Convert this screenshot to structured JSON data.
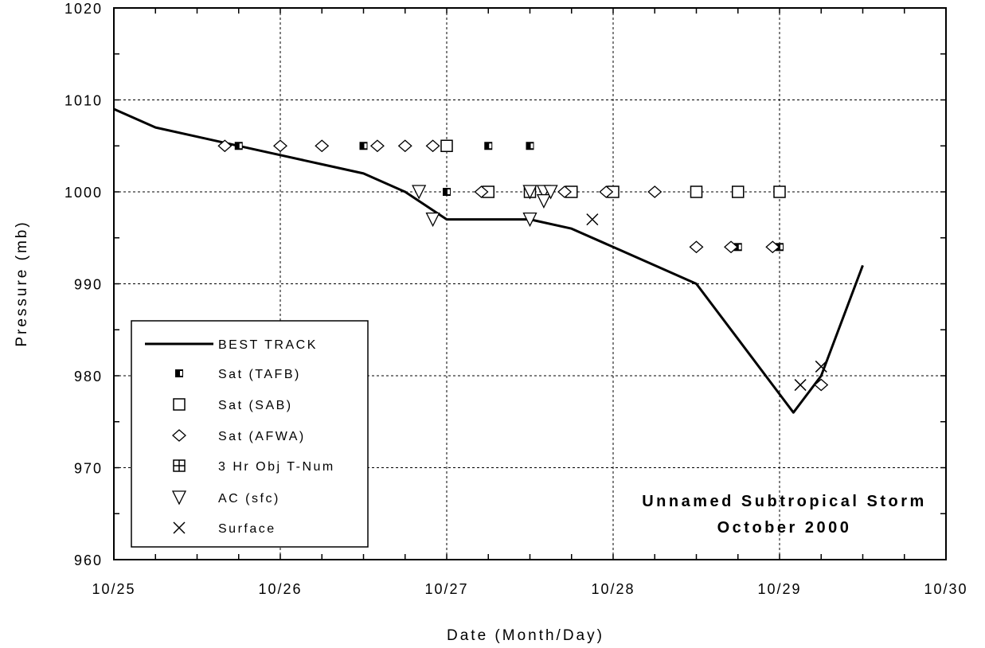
{
  "chart_data": {
    "type": "line",
    "xlabel": "Date (Month/Day)",
    "ylabel": "Pressure (mb)",
    "xlim": [
      "10/25",
      "10/30"
    ],
    "ylim": [
      960,
      1020
    ],
    "x_ticks": [
      "10/25",
      "10/26",
      "10/27",
      "10/28",
      "10/29",
      "10/30"
    ],
    "y_ticks": [
      960,
      970,
      980,
      990,
      1000,
      1010,
      1020
    ],
    "grid": true,
    "annotation": [
      "Unnamed Subtropical Storm",
      "October 2000"
    ],
    "legend_position": "bottom-left",
    "series": [
      {
        "name": "BEST TRACK",
        "marker": "line",
        "points": [
          {
            "x": "10/25 00Z",
            "y": 1009
          },
          {
            "x": "10/25 06Z",
            "y": 1007
          },
          {
            "x": "10/25 12Z",
            "y": 1006
          },
          {
            "x": "10/25 18Z",
            "y": 1005
          },
          {
            "x": "10/26 00Z",
            "y": 1004
          },
          {
            "x": "10/26 06Z",
            "y": 1003
          },
          {
            "x": "10/26 12Z",
            "y": 1002
          },
          {
            "x": "10/26 18Z",
            "y": 1000
          },
          {
            "x": "10/27 00Z",
            "y": 997
          },
          {
            "x": "10/27 06Z",
            "y": 997
          },
          {
            "x": "10/27 12Z",
            "y": 997
          },
          {
            "x": "10/27 18Z",
            "y": 996
          },
          {
            "x": "10/28 00Z",
            "y": 994
          },
          {
            "x": "10/28 06Z",
            "y": 992
          },
          {
            "x": "10/28 12Z",
            "y": 990
          },
          {
            "x": "10/28 18Z",
            "y": 984
          },
          {
            "x": "10/29 00Z",
            "y": 978
          },
          {
            "x": "10/29 02Z",
            "y": 976
          },
          {
            "x": "10/29 06Z",
            "y": 980
          },
          {
            "x": "10/29 12Z",
            "y": 992
          }
        ]
      },
      {
        "name": "Sat (TAFB)",
        "marker": "half-square",
        "points": [
          {
            "x": "10/25 18Z",
            "y": 1005
          },
          {
            "x": "10/26 12Z",
            "y": 1005
          },
          {
            "x": "10/27 00Z",
            "y": 1005
          },
          {
            "x": "10/27 00Z",
            "y": 1000
          },
          {
            "x": "10/27 06Z",
            "y": 1005
          },
          {
            "x": "10/27 12Z",
            "y": 1005
          },
          {
            "x": "10/27 18Z",
            "y": 1000
          },
          {
            "x": "10/28 00Z",
            "y": 1000
          },
          {
            "x": "10/28 12Z",
            "y": 1000
          },
          {
            "x": "10/28 18Z",
            "y": 994
          },
          {
            "x": "10/29 00Z",
            "y": 994
          }
        ]
      },
      {
        "name": "Sat (SAB)",
        "marker": "square",
        "points": [
          {
            "x": "10/27 00Z",
            "y": 1005
          },
          {
            "x": "10/27 06Z",
            "y": 1000
          },
          {
            "x": "10/27 12Z",
            "y": 1000
          },
          {
            "x": "10/27 18Z",
            "y": 1000
          },
          {
            "x": "10/28 00Z",
            "y": 1000
          },
          {
            "x": "10/28 12Z",
            "y": 1000
          },
          {
            "x": "10/28 18Z",
            "y": 1000
          },
          {
            "x": "10/29 00Z",
            "y": 1000
          }
        ]
      },
      {
        "name": "Sat (AFWA)",
        "marker": "diamond",
        "points": [
          {
            "x": "10/25 16Z",
            "y": 1005
          },
          {
            "x": "10/26 00Z",
            "y": 1005
          },
          {
            "x": "10/26 06Z",
            "y": 1005
          },
          {
            "x": "10/26 14Z",
            "y": 1005
          },
          {
            "x": "10/26 18Z",
            "y": 1005
          },
          {
            "x": "10/26 22Z",
            "y": 1005
          },
          {
            "x": "10/27 05Z",
            "y": 1000
          },
          {
            "x": "10/27 17Z",
            "y": 1000
          },
          {
            "x": "10/27 23Z",
            "y": 1000
          },
          {
            "x": "10/28 06Z",
            "y": 1000
          },
          {
            "x": "10/28 12Z",
            "y": 994
          },
          {
            "x": "10/28 17Z",
            "y": 994
          },
          {
            "x": "10/28 23Z",
            "y": 994
          },
          {
            "x": "10/29 06Z",
            "y": 979
          }
        ]
      },
      {
        "name": "3 Hr Obj T-Num",
        "marker": "square-cross",
        "points": []
      },
      {
        "name": "AC (sfc)",
        "marker": "triangle-down",
        "points": [
          {
            "x": "10/26 20Z",
            "y": 1000
          },
          {
            "x": "10/26 22Z",
            "y": 997
          },
          {
            "x": "10/27 12Z",
            "y": 1000
          },
          {
            "x": "10/27 12Z",
            "y": 997
          },
          {
            "x": "10/27 14Z",
            "y": 1000
          },
          {
            "x": "10/27 14Z",
            "y": 999
          },
          {
            "x": "10/27 15Z",
            "y": 1000
          }
        ]
      },
      {
        "name": "Surface",
        "marker": "x",
        "points": [
          {
            "x": "10/27 21Z",
            "y": 997
          },
          {
            "x": "10/29 03Z",
            "y": 979
          },
          {
            "x": "10/29 06Z",
            "y": 981
          }
        ]
      }
    ]
  }
}
